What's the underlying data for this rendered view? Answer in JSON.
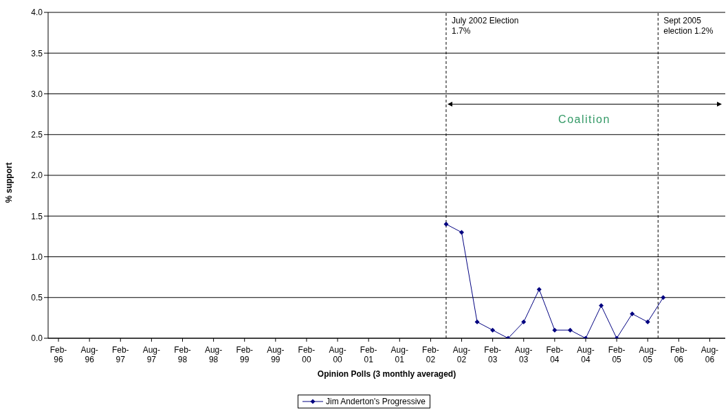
{
  "chart_data": {
    "type": "line",
    "xlabel": "Opinion Polls (3 monthly averaged)",
    "ylabel": "% support",
    "x": [
      "2002-05",
      "2002-08",
      "2002-11",
      "2003-02",
      "2003-05",
      "2003-08",
      "2003-11",
      "2004-02",
      "2004-05",
      "2004-08",
      "2004-11",
      "2005-02",
      "2005-05",
      "2005-08",
      "2005-11"
    ],
    "series": [
      {
        "name": "Jim Anderton's Progressive",
        "color": "#000080",
        "values": [
          1.4,
          1.3,
          0.2,
          0.1,
          0.0,
          0.2,
          0.6,
          0.1,
          0.1,
          0.0,
          0.4,
          0.0,
          0.3,
          0.2,
          0.5
        ]
      }
    ],
    "xlim": [
      "1995-12",
      "2006-11"
    ],
    "xticks": [
      {
        "value": "1996-02",
        "label": "Feb-96"
      },
      {
        "value": "1996-08",
        "label": "Aug-96"
      },
      {
        "value": "1997-02",
        "label": "Feb-97"
      },
      {
        "value": "1997-08",
        "label": "Aug-97"
      },
      {
        "value": "1998-02",
        "label": "Feb-98"
      },
      {
        "value": "1998-08",
        "label": "Aug-98"
      },
      {
        "value": "1999-02",
        "label": "Feb-99"
      },
      {
        "value": "1999-08",
        "label": "Aug-99"
      },
      {
        "value": "2000-02",
        "label": "Feb-00"
      },
      {
        "value": "2000-08",
        "label": "Aug-00"
      },
      {
        "value": "2001-02",
        "label": "Feb-01"
      },
      {
        "value": "2001-08",
        "label": "Aug-01"
      },
      {
        "value": "2002-02",
        "label": "Feb-02"
      },
      {
        "value": "2002-08",
        "label": "Aug-02"
      },
      {
        "value": "2003-02",
        "label": "Feb-03"
      },
      {
        "value": "2003-08",
        "label": "Aug-03"
      },
      {
        "value": "2004-02",
        "label": "Feb-04"
      },
      {
        "value": "2004-08",
        "label": "Aug-04"
      },
      {
        "value": "2005-02",
        "label": "Feb-05"
      },
      {
        "value": "2005-08",
        "label": "Aug-05"
      },
      {
        "value": "2006-02",
        "label": "Feb-06"
      },
      {
        "value": "2006-08",
        "label": "Aug-06"
      }
    ],
    "ylim": [
      0,
      4
    ],
    "yticks": [
      {
        "value": 0,
        "label": "0.0"
      },
      {
        "value": 0.5,
        "label": "0.5"
      },
      {
        "value": 1,
        "label": "1.0"
      },
      {
        "value": 1.5,
        "label": "1.5"
      },
      {
        "value": 2,
        "label": "2.0"
      },
      {
        "value": 2.5,
        "label": "2.5"
      },
      {
        "value": 3,
        "label": "3.0"
      },
      {
        "value": 3.5,
        "label": "3.5"
      },
      {
        "value": 4,
        "label": "4.0"
      }
    ],
    "ref_lines": [
      {
        "axis": "x",
        "value": "2002-05",
        "label": "July 2002 Election\n1.7%",
        "line_style": "dashed",
        "color": "#000000"
      },
      {
        "axis": "x",
        "value": "2005-10",
        "label": "Sept 2005\nelection 1.2%",
        "line_style": "dashed",
        "color": "#000000"
      }
    ],
    "annotations": [
      "Coalition"
    ],
    "grid": "y",
    "legend": "bottom",
    "marker": "diamond",
    "line_style": "solid"
  }
}
